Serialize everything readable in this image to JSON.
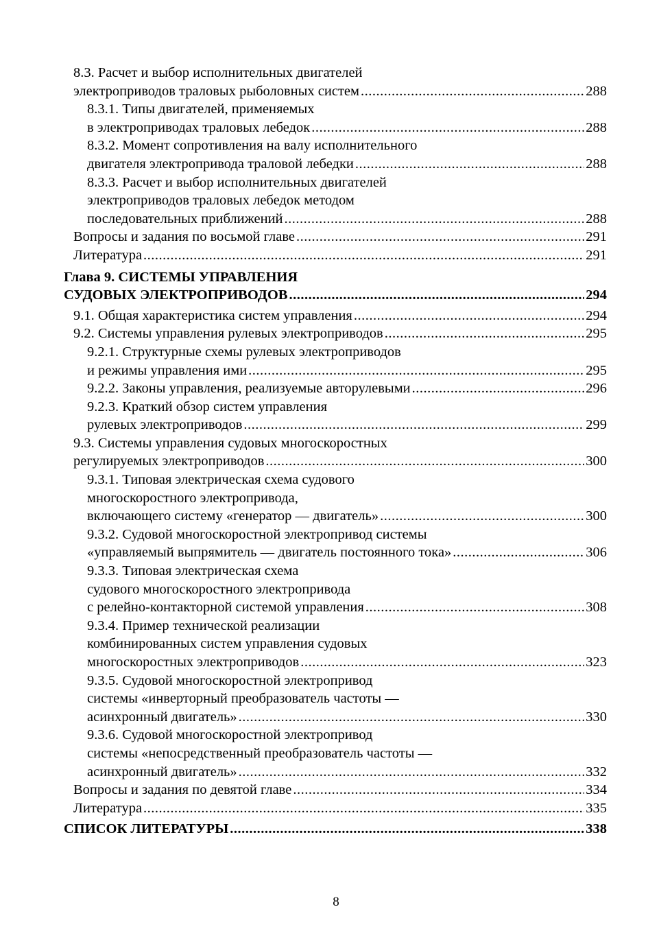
{
  "toc": [
    {
      "level": "l1",
      "lines": [
        "8.3. Расчет и выбор исполнительных двигателей",
        "электроприводов траловых рыболовных систем"
      ],
      "page": "288"
    },
    {
      "level": "l2",
      "lines": [
        "8.3.1. Типы двигателей, применяемых",
        "в электроприводах траловых лебедок"
      ],
      "page": "288"
    },
    {
      "level": "l2",
      "lines": [
        "8.3.2. Момент сопротивления на валу исполнительного",
        "двигателя электропривода траловой лебедки"
      ],
      "page": "288"
    },
    {
      "level": "l2",
      "lines": [
        "8.3.3. Расчет и выбор исполнительных двигателей",
        "электроприводов траловых лебедок методом",
        "последовательных приближений"
      ],
      "page": "288"
    },
    {
      "level": "l1",
      "lines": [
        "Вопросы и задания по восьмой главе"
      ],
      "page": "291"
    },
    {
      "level": "l1",
      "lines": [
        "Литература"
      ],
      "page": "291"
    },
    {
      "level": "ch",
      "lines": [
        "Глава 9. СИСТЕМЫ УПРАВЛЕНИЯ",
        "СУДОВЫХ ЭЛЕКТРОПРИВОДОВ"
      ],
      "page": "294"
    },
    {
      "level": "l1",
      "lines": [
        "9.1. Общая характеристика систем управления"
      ],
      "page": "294"
    },
    {
      "level": "l1",
      "lines": [
        "9.2. Системы управления рулевых электроприводов"
      ],
      "page": "295"
    },
    {
      "level": "l2",
      "lines": [
        "9.2.1. Структурные схемы рулевых электроприводов",
        "и режимы управления ими"
      ],
      "page": "295"
    },
    {
      "level": "l2",
      "lines": [
        "9.2.2. Законы управления, реализуемые авторулевыми"
      ],
      "page": "296"
    },
    {
      "level": "l2",
      "lines": [
        "9.2.3. Краткий обзор систем управления",
        "рулевых электроприводов"
      ],
      "page": "299"
    },
    {
      "level": "l1",
      "lines": [
        "9.3. Системы управления судовых многоскоростных",
        "регулируемых электроприводов"
      ],
      "page": "300"
    },
    {
      "level": "l2",
      "lines": [
        "9.3.1. Типовая электрическая схема судового",
        "многоскоростного электропривода,",
        "включающего систему «генератор — двигатель»"
      ],
      "page": "300"
    },
    {
      "level": "l2",
      "lines": [
        "9.3.2. Судовой многоскоростной электропривод системы",
        "«управляемый выпрямитель — двигатель постоянного тока»"
      ],
      "page": "306"
    },
    {
      "level": "l2",
      "lines": [
        "9.3.3. Типовая электрическая схема",
        "судового многоскоростного электропривода",
        "с релейно-контакторной системой управления"
      ],
      "page": "308"
    },
    {
      "level": "l2",
      "lines": [
        "9.3.4. Пример технической реализации",
        "комбинированных систем управления судовых",
        "многоскоростных электроприводов"
      ],
      "page": "323"
    },
    {
      "level": "l2",
      "lines": [
        "9.3.5. Судовой многоскоростной электропривод",
        "системы «инверторный преобразователь частоты —",
        "асинхронный двигатель»"
      ],
      "page": "330"
    },
    {
      "level": "l2",
      "lines": [
        "9.3.6. Судовой многоскоростной электропривод",
        "системы «непосредственный преобразователь частоты —",
        "асинхронный двигатель»"
      ],
      "page": "332"
    },
    {
      "level": "l1",
      "lines": [
        "Вопросы и задания по девятой главе"
      ],
      "page": "334"
    },
    {
      "level": "l1",
      "lines": [
        "Литература"
      ],
      "page": "335"
    },
    {
      "level": "ch last",
      "lines": [
        "СПИСОК ЛИТЕРАТУРЫ"
      ],
      "page": "338"
    }
  ],
  "page_number": "8"
}
